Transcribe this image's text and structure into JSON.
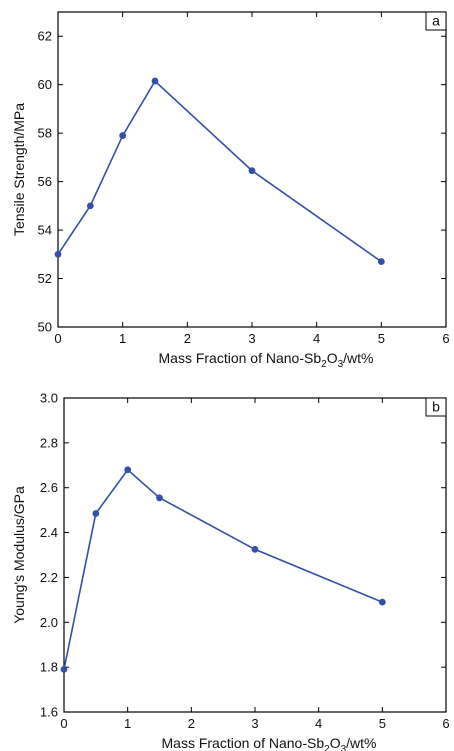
{
  "chart_data": [
    {
      "type": "line",
      "panel_label": "a",
      "xlabel": "Mass Fraction of Nano-Sb2O3/wt%",
      "ylabel": "Tensile Strength/MPa",
      "xlim": [
        0,
        6
      ],
      "ylim": [
        50,
        63
      ],
      "x_ticks": [
        0,
        1,
        2,
        3,
        4,
        5,
        6
      ],
      "y_ticks": [
        50,
        52,
        54,
        56,
        58,
        60,
        62
      ],
      "series": [
        {
          "x": [
            0,
            0.5,
            1,
            1.5,
            3,
            5
          ],
          "values": [
            53.0,
            55.0,
            57.9,
            60.15,
            56.45,
            52.7
          ],
          "color": "#3350a8"
        }
      ],
      "grid": false
    },
    {
      "type": "line",
      "panel_label": "b",
      "xlabel": "Mass Fraction of Nano-Sb2O3/wt%",
      "ylabel": "Young's Modulus/GPa",
      "xlim": [
        0,
        6
      ],
      "ylim": [
        1.6,
        3.0
      ],
      "x_ticks": [
        0,
        1,
        2,
        3,
        4,
        5,
        6
      ],
      "y_ticks": [
        1.6,
        1.8,
        2.0,
        2.2,
        2.4,
        2.6,
        2.8,
        3.0
      ],
      "series": [
        {
          "x": [
            0,
            0.5,
            1,
            1.5,
            3,
            5
          ],
          "values": [
            1.79,
            2.485,
            2.68,
            2.555,
            2.325,
            2.09
          ],
          "color": "#3350a8"
        }
      ],
      "grid": false
    }
  ]
}
